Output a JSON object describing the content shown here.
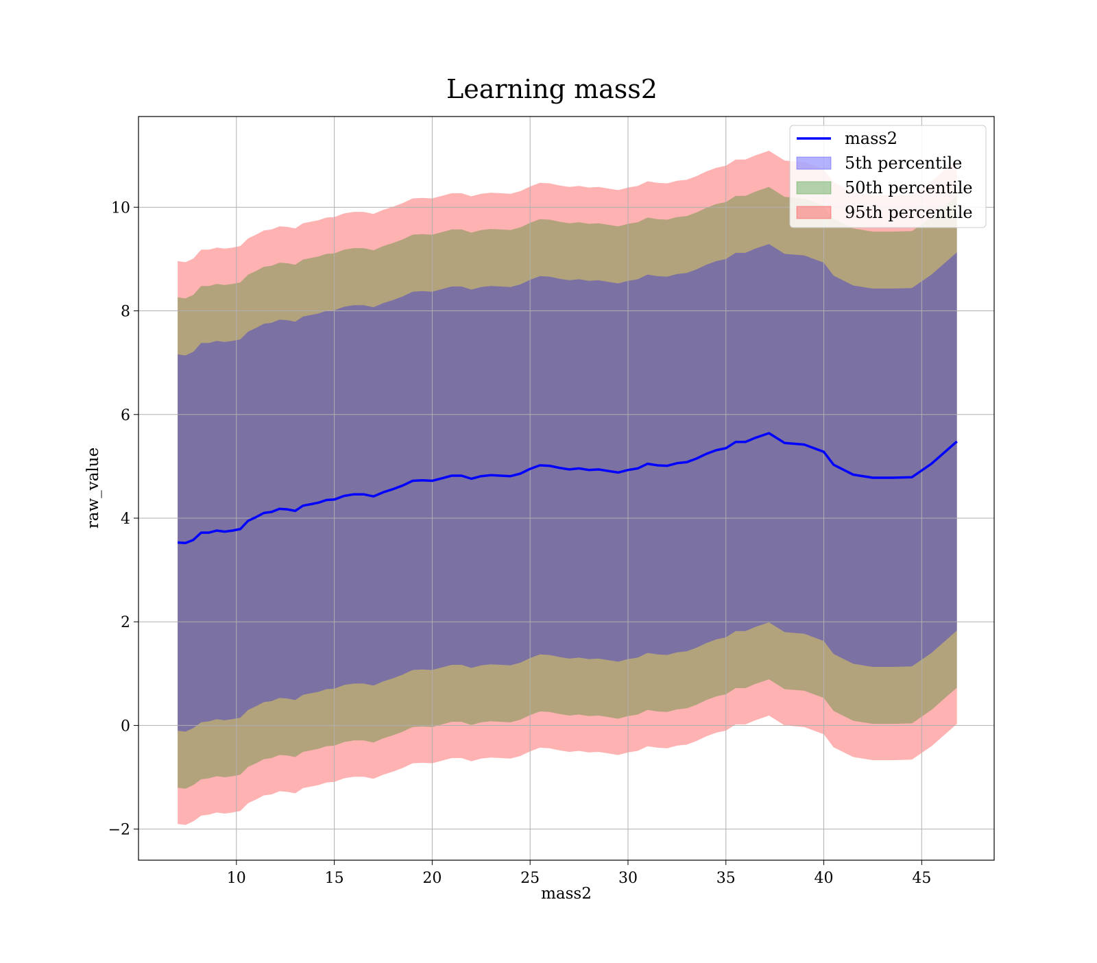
{
  "chart_data": {
    "type": "area",
    "title": "Learning mass2",
    "xlabel": "mass2",
    "ylabel": "raw_value",
    "xlim": [
      5,
      48.7
    ],
    "ylim": [
      -2.6,
      11.75
    ],
    "xticks": [
      10,
      15,
      20,
      25,
      30,
      35,
      40,
      45
    ],
    "yticks": [
      -2,
      0,
      2,
      4,
      6,
      8,
      10
    ],
    "xtick_labels": [
      "10",
      "15",
      "20",
      "25",
      "30",
      "35",
      "40",
      "45"
    ],
    "ytick_labels": [
      "−2",
      "0",
      "2",
      "4",
      "6",
      "8",
      "10"
    ],
    "grid": true,
    "legend_position": "top-right",
    "legend": [
      {
        "label": "mass2",
        "kind": "line",
        "color": "#0000ff"
      },
      {
        "label": "5th percentile",
        "kind": "patch",
        "color": "#0000ff"
      },
      {
        "label": "50th percentile",
        "kind": "patch",
        "color": "#008000"
      },
      {
        "label": "95th percentile",
        "kind": "patch",
        "color": "#ff0000"
      }
    ],
    "colors": {
      "line": "#0000ff",
      "p5": "#0000ff",
      "p50": "#008000",
      "p95": "#ff0000"
    },
    "x": [
      7.0,
      7.4,
      7.8,
      8.2,
      8.6,
      9.0,
      9.4,
      9.8,
      10.2,
      10.6,
      11.0,
      11.4,
      11.8,
      12.2,
      12.6,
      13.0,
      13.4,
      13.8,
      14.2,
      14.6,
      15.0,
      15.5,
      16.0,
      16.5,
      17.0,
      17.5,
      18.0,
      18.5,
      19.0,
      19.5,
      20.0,
      20.5,
      21.0,
      21.5,
      22.0,
      22.5,
      23.0,
      23.5,
      24.0,
      24.5,
      25.0,
      25.5,
      26.0,
      26.5,
      27.0,
      27.5,
      28.0,
      28.5,
      29.0,
      29.5,
      30.0,
      30.5,
      31.0,
      31.5,
      32.0,
      32.5,
      33.0,
      33.5,
      34.0,
      34.5,
      35.0,
      35.5,
      36.0,
      36.5,
      37.2,
      38.0,
      39.0,
      40.0,
      40.5,
      41.5,
      42.5,
      43.5,
      44.5,
      45.5,
      46.8
    ],
    "series": [
      {
        "name": "mass2",
        "values": [
          3.53,
          3.52,
          3.58,
          3.72,
          3.72,
          3.76,
          3.74,
          3.76,
          3.79,
          3.95,
          4.02,
          4.1,
          4.12,
          4.18,
          4.17,
          4.14,
          4.24,
          4.27,
          4.3,
          4.35,
          4.36,
          4.43,
          4.46,
          4.46,
          4.42,
          4.5,
          4.56,
          4.63,
          4.72,
          4.73,
          4.72,
          4.77,
          4.82,
          4.82,
          4.76,
          4.81,
          4.83,
          4.82,
          4.81,
          4.86,
          4.95,
          5.02,
          5.01,
          4.97,
          4.94,
          4.96,
          4.93,
          4.94,
          4.91,
          4.88,
          4.93,
          4.96,
          5.05,
          5.02,
          5.01,
          5.06,
          5.08,
          5.15,
          5.24,
          5.31,
          5.35,
          5.47,
          5.47,
          5.55,
          5.64,
          5.45,
          5.42,
          5.28,
          5.03,
          4.84,
          4.78,
          4.78,
          4.79,
          5.05,
          5.48
        ]
      }
    ],
    "bands": {
      "p5": {
        "lower": [
          -0.1,
          -0.12,
          -0.05,
          0.06,
          0.08,
          0.12,
          0.1,
          0.12,
          0.15,
          0.3,
          0.37,
          0.45,
          0.47,
          0.53,
          0.52,
          0.49,
          0.59,
          0.62,
          0.65,
          0.7,
          0.71,
          0.78,
          0.81,
          0.81,
          0.77,
          0.85,
          0.91,
          0.98,
          1.07,
          1.08,
          1.07,
          1.12,
          1.17,
          1.17,
          1.11,
          1.16,
          1.18,
          1.17,
          1.16,
          1.21,
          1.3,
          1.37,
          1.36,
          1.32,
          1.29,
          1.31,
          1.28,
          1.29,
          1.26,
          1.23,
          1.28,
          1.31,
          1.4,
          1.37,
          1.36,
          1.41,
          1.43,
          1.5,
          1.59,
          1.66,
          1.7,
          1.82,
          1.82,
          1.9,
          1.99,
          1.8,
          1.77,
          1.63,
          1.38,
          1.19,
          1.13,
          1.13,
          1.14,
          1.4,
          1.83
        ],
        "upper": [
          7.16,
          7.14,
          7.21,
          7.38,
          7.38,
          7.42,
          7.4,
          7.42,
          7.45,
          7.6,
          7.67,
          7.75,
          7.77,
          7.83,
          7.82,
          7.79,
          7.89,
          7.92,
          7.95,
          8.0,
          8.01,
          8.08,
          8.11,
          8.11,
          8.07,
          8.15,
          8.21,
          8.28,
          8.37,
          8.38,
          8.37,
          8.42,
          8.47,
          8.47,
          8.41,
          8.46,
          8.48,
          8.47,
          8.46,
          8.51,
          8.6,
          8.67,
          8.66,
          8.62,
          8.59,
          8.61,
          8.58,
          8.59,
          8.56,
          8.53,
          8.58,
          8.61,
          8.7,
          8.67,
          8.66,
          8.71,
          8.73,
          8.8,
          8.89,
          8.96,
          9.0,
          9.12,
          9.12,
          9.2,
          9.29,
          9.1,
          9.07,
          8.93,
          8.68,
          8.49,
          8.43,
          8.43,
          8.44,
          8.7,
          9.13
        ]
      },
      "p50": {
        "lower": [
          -1.2,
          -1.22,
          -1.15,
          -1.04,
          -1.02,
          -0.98,
          -1.0,
          -0.98,
          -0.95,
          -0.8,
          -0.73,
          -0.65,
          -0.63,
          -0.57,
          -0.58,
          -0.61,
          -0.51,
          -0.48,
          -0.45,
          -0.4,
          -0.39,
          -0.32,
          -0.29,
          -0.29,
          -0.33,
          -0.25,
          -0.19,
          -0.12,
          -0.03,
          -0.02,
          -0.03,
          0.02,
          0.07,
          0.07,
          0.01,
          0.06,
          0.08,
          0.07,
          0.06,
          0.11,
          0.2,
          0.27,
          0.26,
          0.22,
          0.19,
          0.21,
          0.18,
          0.19,
          0.16,
          0.13,
          0.18,
          0.21,
          0.3,
          0.27,
          0.26,
          0.31,
          0.33,
          0.4,
          0.49,
          0.56,
          0.6,
          0.72,
          0.72,
          0.8,
          0.89,
          0.7,
          0.67,
          0.53,
          0.28,
          0.09,
          0.03,
          0.03,
          0.04,
          0.3,
          0.73
        ],
        "upper": [
          8.26,
          8.24,
          8.31,
          8.48,
          8.48,
          8.52,
          8.5,
          8.52,
          8.55,
          8.7,
          8.77,
          8.85,
          8.87,
          8.93,
          8.92,
          8.89,
          8.99,
          9.02,
          9.05,
          9.1,
          9.11,
          9.18,
          9.21,
          9.21,
          9.17,
          9.25,
          9.31,
          9.38,
          9.47,
          9.48,
          9.47,
          9.52,
          9.57,
          9.57,
          9.51,
          9.56,
          9.58,
          9.57,
          9.56,
          9.61,
          9.7,
          9.77,
          9.76,
          9.72,
          9.69,
          9.71,
          9.68,
          9.69,
          9.66,
          9.63,
          9.68,
          9.71,
          9.8,
          9.77,
          9.76,
          9.81,
          9.83,
          9.9,
          9.99,
          10.06,
          10.1,
          10.22,
          10.22,
          10.3,
          10.39,
          10.2,
          10.17,
          10.03,
          9.78,
          9.59,
          9.53,
          9.53,
          9.54,
          9.8,
          10.23
        ]
      },
      "p95": {
        "lower": [
          -1.9,
          -1.92,
          -1.85,
          -1.74,
          -1.72,
          -1.68,
          -1.7,
          -1.68,
          -1.65,
          -1.5,
          -1.43,
          -1.35,
          -1.33,
          -1.27,
          -1.28,
          -1.31,
          -1.21,
          -1.18,
          -1.15,
          -1.1,
          -1.09,
          -1.02,
          -0.99,
          -0.99,
          -1.03,
          -0.95,
          -0.89,
          -0.82,
          -0.73,
          -0.72,
          -0.73,
          -0.68,
          -0.63,
          -0.63,
          -0.69,
          -0.64,
          -0.62,
          -0.63,
          -0.64,
          -0.59,
          -0.5,
          -0.43,
          -0.44,
          -0.48,
          -0.51,
          -0.49,
          -0.52,
          -0.51,
          -0.54,
          -0.57,
          -0.52,
          -0.49,
          -0.4,
          -0.43,
          -0.44,
          -0.39,
          -0.37,
          -0.3,
          -0.21,
          -0.14,
          -0.1,
          0.02,
          0.02,
          0.1,
          0.19,
          0.0,
          -0.03,
          -0.17,
          -0.42,
          -0.61,
          -0.67,
          -0.67,
          -0.66,
          -0.4,
          0.03
        ],
        "upper": [
          8.96,
          8.94,
          9.01,
          9.18,
          9.18,
          9.22,
          9.2,
          9.22,
          9.25,
          9.4,
          9.47,
          9.55,
          9.57,
          9.63,
          9.62,
          9.59,
          9.69,
          9.72,
          9.75,
          9.8,
          9.81,
          9.88,
          9.91,
          9.91,
          9.87,
          9.95,
          10.01,
          10.08,
          10.17,
          10.18,
          10.17,
          10.22,
          10.27,
          10.27,
          10.21,
          10.26,
          10.28,
          10.27,
          10.26,
          10.31,
          10.4,
          10.47,
          10.46,
          10.42,
          10.39,
          10.41,
          10.38,
          10.39,
          10.36,
          10.33,
          10.38,
          10.41,
          10.5,
          10.47,
          10.46,
          10.51,
          10.53,
          10.6,
          10.69,
          10.76,
          10.8,
          10.92,
          10.92,
          11.0,
          11.09,
          10.9,
          10.87,
          10.73,
          10.48,
          10.29,
          10.23,
          10.23,
          10.24,
          10.5,
          10.93
        ]
      }
    }
  }
}
